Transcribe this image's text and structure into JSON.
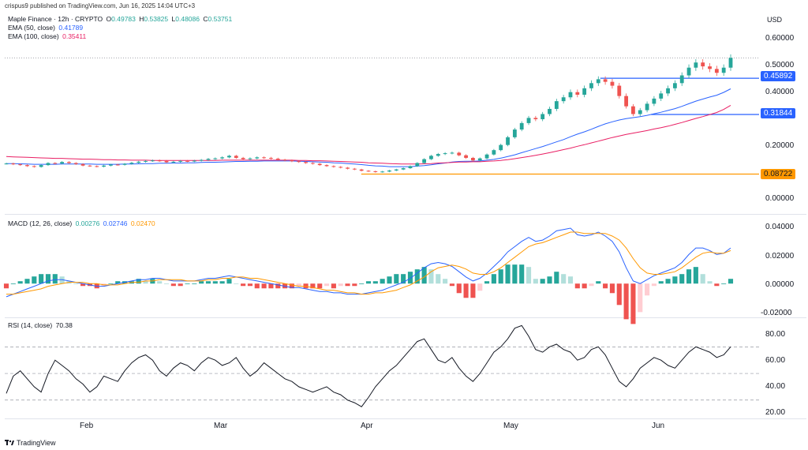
{
  "header": {
    "publish_line": "crispus9 published on TradingView.com, Jun 16, 2025 14:04 UTC+3"
  },
  "footer": {
    "brand": "TradingView"
  },
  "price_legend": {
    "title": "Maple Finance · 12h · CRYPTO",
    "o_label": "O",
    "o": "0.49783",
    "h_label": "H",
    "h": "0.53825",
    "l_label": "L",
    "l": "0.48086",
    "c_label": "C",
    "c": "0.53751",
    "ema50_label": "EMA (50, close)",
    "ema50": "0.41789",
    "ema100_label": "EMA (100, close)",
    "ema100": "0.35411"
  },
  "macd_legend": {
    "label": "MACD (12, 26, close)",
    "hist": "0.00276",
    "macd": "0.02746",
    "signal": "0.02470"
  },
  "rsi_legend": {
    "label": "RSI (14, close)",
    "value": "70.38"
  },
  "colors": {
    "up": "#26a69a",
    "down": "#ef5350",
    "ema50": "#2962ff",
    "ema100": "#e91e63",
    "macd": "#2962ff",
    "signal": "#ff9800",
    "rsi": "#131722",
    "level_blue": "#2962ff",
    "level_orange": "#ff9800"
  },
  "chart_data": [
    {
      "type": "candlestick",
      "currency": "USD",
      "y_ticks": [
        "0.60000",
        "0.50000",
        "0.40000",
        "0.20000",
        "0.00000"
      ],
      "ylim": [
        -0.04,
        0.64
      ],
      "x_ticks": [
        "Feb",
        "Mar",
        "Apr",
        "May",
        "Jun"
      ],
      "horizontal_levels": [
        {
          "value": 0.45892,
          "label": "0.45892",
          "color": "blue"
        },
        {
          "value": 0.31844,
          "label": "0.31844",
          "color": "blue"
        },
        {
          "value": 0.08722,
          "label": "0.08722",
          "color": "orange"
        }
      ],
      "close_series": [
        0.128,
        0.125,
        0.122,
        0.118,
        0.115,
        0.122,
        0.13,
        0.128,
        0.134,
        0.13,
        0.126,
        0.12,
        0.118,
        0.116,
        0.12,
        0.124,
        0.123,
        0.127,
        0.131,
        0.135,
        0.138,
        0.14,
        0.138,
        0.133,
        0.135,
        0.138,
        0.137,
        0.139,
        0.142,
        0.146,
        0.148,
        0.152,
        0.158,
        0.15,
        0.145,
        0.148,
        0.152,
        0.15,
        0.147,
        0.143,
        0.14,
        0.137,
        0.134,
        0.13,
        0.127,
        0.122,
        0.118,
        0.115,
        0.112,
        0.108,
        0.105,
        0.1,
        0.098,
        0.095,
        0.097,
        0.101,
        0.105,
        0.11,
        0.118,
        0.13,
        0.145,
        0.158,
        0.165,
        0.168,
        0.17,
        0.16,
        0.15,
        0.14,
        0.148,
        0.163,
        0.18,
        0.2,
        0.23,
        0.26,
        0.285,
        0.305,
        0.3,
        0.32,
        0.34,
        0.37,
        0.385,
        0.405,
        0.395,
        0.42,
        0.44,
        0.455,
        0.445,
        0.43,
        0.39,
        0.35,
        0.32,
        0.335,
        0.36,
        0.38,
        0.4,
        0.42,
        0.44,
        0.47,
        0.5,
        0.52,
        0.505,
        0.495,
        0.48,
        0.5,
        0.538
      ]
    },
    {
      "type": "line",
      "title": "EMA",
      "series": [
        {
          "name": "EMA (50, close)",
          "values": [
            0.128,
            0.128,
            0.127,
            0.126,
            0.125,
            0.125,
            0.125,
            0.125,
            0.126,
            0.126,
            0.126,
            0.126,
            0.126,
            0.125,
            0.125,
            0.125,
            0.125,
            0.126,
            0.126,
            0.127,
            0.128,
            0.128,
            0.129,
            0.129,
            0.13,
            0.13,
            0.131,
            0.131,
            0.132,
            0.133,
            0.133,
            0.134,
            0.135,
            0.136,
            0.136,
            0.137,
            0.137,
            0.138,
            0.138,
            0.138,
            0.138,
            0.138,
            0.137,
            0.136,
            0.135,
            0.134,
            0.133,
            0.131,
            0.13,
            0.128,
            0.126,
            0.124,
            0.121,
            0.119,
            0.118,
            0.116,
            0.116,
            0.116,
            0.116,
            0.118,
            0.12,
            0.123,
            0.127,
            0.13,
            0.134,
            0.136,
            0.137,
            0.137,
            0.138,
            0.141,
            0.144,
            0.149,
            0.155,
            0.162,
            0.17,
            0.178,
            0.186,
            0.194,
            0.203,
            0.212,
            0.221,
            0.232,
            0.242,
            0.251,
            0.261,
            0.272,
            0.282,
            0.29,
            0.297,
            0.302,
            0.306,
            0.31,
            0.315,
            0.321,
            0.327,
            0.334,
            0.341,
            0.35,
            0.36,
            0.37,
            0.378,
            0.386,
            0.393,
            0.404,
            0.418
          ]
        },
        {
          "name": "EMA (100, close)",
          "values": [
            0.155,
            0.154,
            0.153,
            0.152,
            0.151,
            0.15,
            0.149,
            0.148,
            0.148,
            0.147,
            0.146,
            0.145,
            0.145,
            0.144,
            0.143,
            0.143,
            0.142,
            0.142,
            0.141,
            0.141,
            0.141,
            0.14,
            0.14,
            0.14,
            0.14,
            0.14,
            0.14,
            0.14,
            0.14,
            0.14,
            0.14,
            0.141,
            0.141,
            0.141,
            0.141,
            0.141,
            0.141,
            0.141,
            0.141,
            0.141,
            0.141,
            0.141,
            0.14,
            0.14,
            0.139,
            0.139,
            0.138,
            0.137,
            0.136,
            0.135,
            0.134,
            0.133,
            0.131,
            0.13,
            0.129,
            0.128,
            0.127,
            0.126,
            0.126,
            0.126,
            0.127,
            0.128,
            0.13,
            0.131,
            0.132,
            0.134,
            0.134,
            0.135,
            0.135,
            0.137,
            0.138,
            0.14,
            0.143,
            0.147,
            0.151,
            0.155,
            0.16,
            0.165,
            0.17,
            0.176,
            0.182,
            0.188,
            0.195,
            0.201,
            0.208,
            0.215,
            0.222,
            0.229,
            0.235,
            0.241,
            0.246,
            0.251,
            0.256,
            0.262,
            0.267,
            0.273,
            0.28,
            0.287,
            0.295,
            0.303,
            0.31,
            0.318,
            0.326,
            0.338,
            0.354
          ]
        }
      ]
    },
    {
      "type": "bar",
      "title": "MACD (12, 26, close)",
      "y_ticks": [
        "0.04000",
        "0.02000",
        "0.00000",
        "-0.02000"
      ],
      "ylim": [
        -0.022,
        0.045
      ],
      "series": [
        {
          "name": "MACD",
          "values": [
            -0.01,
            -0.008,
            -0.006,
            -0.004,
            -0.002,
            0.0,
            0.002,
            0.003,
            0.003,
            0.002,
            0.001,
            0.0,
            -0.001,
            -0.002,
            -0.002,
            -0.001,
            0.0,
            0.001,
            0.002,
            0.003,
            0.003,
            0.004,
            0.004,
            0.003,
            0.002,
            0.002,
            0.002,
            0.002,
            0.003,
            0.004,
            0.004,
            0.005,
            0.006,
            0.005,
            0.004,
            0.003,
            0.002,
            0.001,
            0.0,
            -0.001,
            -0.002,
            -0.003,
            -0.003,
            -0.004,
            -0.005,
            -0.006,
            -0.006,
            -0.007,
            -0.007,
            -0.008,
            -0.008,
            -0.008,
            -0.007,
            -0.006,
            -0.005,
            -0.003,
            -0.001,
            0.001,
            0.004,
            0.008,
            0.012,
            0.015,
            0.016,
            0.015,
            0.013,
            0.009,
            0.005,
            0.002,
            0.004,
            0.008,
            0.013,
            0.018,
            0.024,
            0.028,
            0.032,
            0.035,
            0.032,
            0.033,
            0.036,
            0.04,
            0.041,
            0.042,
            0.037,
            0.036,
            0.037,
            0.039,
            0.036,
            0.032,
            0.024,
            0.012,
            0.002,
            0.0,
            0.003,
            0.006,
            0.008,
            0.01,
            0.012,
            0.016,
            0.022,
            0.027,
            0.027,
            0.025,
            0.022,
            0.023,
            0.027
          ]
        },
        {
          "name": "Signal",
          "values": [
            -0.008,
            -0.008,
            -0.007,
            -0.006,
            -0.005,
            -0.004,
            -0.002,
            -0.001,
            0.0,
            0.001,
            0.001,
            0.001,
            0.0,
            0.0,
            -0.001,
            -0.001,
            -0.001,
            0.0,
            0.001,
            0.001,
            0.002,
            0.002,
            0.003,
            0.003,
            0.003,
            0.003,
            0.002,
            0.002,
            0.002,
            0.003,
            0.003,
            0.004,
            0.004,
            0.005,
            0.005,
            0.004,
            0.004,
            0.003,
            0.002,
            0.001,
            0.0,
            -0.001,
            -0.002,
            -0.002,
            -0.003,
            -0.004,
            -0.005,
            -0.005,
            -0.006,
            -0.007,
            -0.007,
            -0.008,
            -0.008,
            -0.007,
            -0.007,
            -0.006,
            -0.005,
            -0.003,
            -0.001,
            0.002,
            0.005,
            0.009,
            0.012,
            0.013,
            0.014,
            0.013,
            0.011,
            0.008,
            0.007,
            0.007,
            0.009,
            0.012,
            0.016,
            0.02,
            0.024,
            0.028,
            0.03,
            0.031,
            0.033,
            0.035,
            0.037,
            0.039,
            0.039,
            0.038,
            0.038,
            0.038,
            0.038,
            0.036,
            0.033,
            0.027,
            0.019,
            0.012,
            0.008,
            0.007,
            0.007,
            0.008,
            0.009,
            0.012,
            0.016,
            0.02,
            0.023,
            0.024,
            0.023,
            0.023,
            0.025
          ]
        }
      ]
    },
    {
      "type": "line",
      "title": "RSI (14, close)",
      "y_ticks": [
        "80.00",
        "60.00",
        "40.00",
        "20.00"
      ],
      "ylim": [
        18,
        88
      ],
      "levels": [
        70,
        50,
        30
      ],
      "series": [
        {
          "name": "RSI",
          "values": [
            35,
            48,
            52,
            46,
            40,
            36,
            50,
            60,
            56,
            52,
            46,
            42,
            36,
            40,
            48,
            46,
            44,
            52,
            58,
            62,
            64,
            60,
            52,
            48,
            54,
            58,
            56,
            52,
            58,
            62,
            60,
            56,
            58,
            62,
            54,
            48,
            52,
            58,
            54,
            50,
            46,
            44,
            40,
            38,
            36,
            38,
            40,
            36,
            34,
            30,
            28,
            25,
            32,
            40,
            46,
            52,
            56,
            62,
            68,
            74,
            76,
            68,
            60,
            58,
            62,
            54,
            48,
            44,
            50,
            58,
            66,
            70,
            76,
            84,
            86,
            78,
            68,
            66,
            70,
            72,
            68,
            66,
            60,
            62,
            68,
            70,
            64,
            54,
            44,
            40,
            46,
            54,
            58,
            62,
            60,
            56,
            54,
            60,
            66,
            70,
            68,
            66,
            62,
            64,
            70
          ]
        }
      ]
    }
  ]
}
